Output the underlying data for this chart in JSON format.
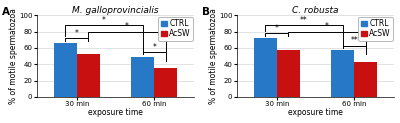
{
  "panel_A": {
    "title": "M. galloprovincialis",
    "label": "A",
    "groups": [
      "30 min",
      "60 min"
    ],
    "ctrl_values": [
      66,
      49
    ],
    "acsw_values": [
      53,
      35
    ],
    "xlabel": "exposure time",
    "ylabel": "% of motile spermatozoa",
    "ylim": [
      0,
      100
    ],
    "yticks": [
      0,
      20,
      40,
      60,
      80,
      100
    ],
    "sig_within": [
      "*",
      "*"
    ],
    "sig_between_ctrl": "*",
    "sig_between_acsw": "*"
  },
  "panel_B": {
    "title": "C. robusta",
    "label": "B",
    "groups": [
      "30 min",
      "60 min"
    ],
    "ctrl_values": [
      72,
      57
    ],
    "acsw_values": [
      57,
      43
    ],
    "xlabel": "exposure time",
    "ylabel": "% of motile spermatozoa",
    "ylim": [
      0,
      100
    ],
    "yticks": [
      0,
      20,
      40,
      60,
      80,
      100
    ],
    "sig_within": [
      "*",
      "**"
    ],
    "sig_between_ctrl": "**",
    "sig_between_acsw": "*"
  },
  "ctrl_color": "#2878c8",
  "acsw_color": "#c81010",
  "bar_width": 0.3,
  "background_color": "#ffffff",
  "legend_labels": [
    "CTRL",
    "AcSW"
  ],
  "title_fontsize": 6.5,
  "axis_label_fontsize": 5.5,
  "tick_fontsize": 5.0,
  "legend_fontsize": 5.5,
  "sig_fontsize": 5.5
}
